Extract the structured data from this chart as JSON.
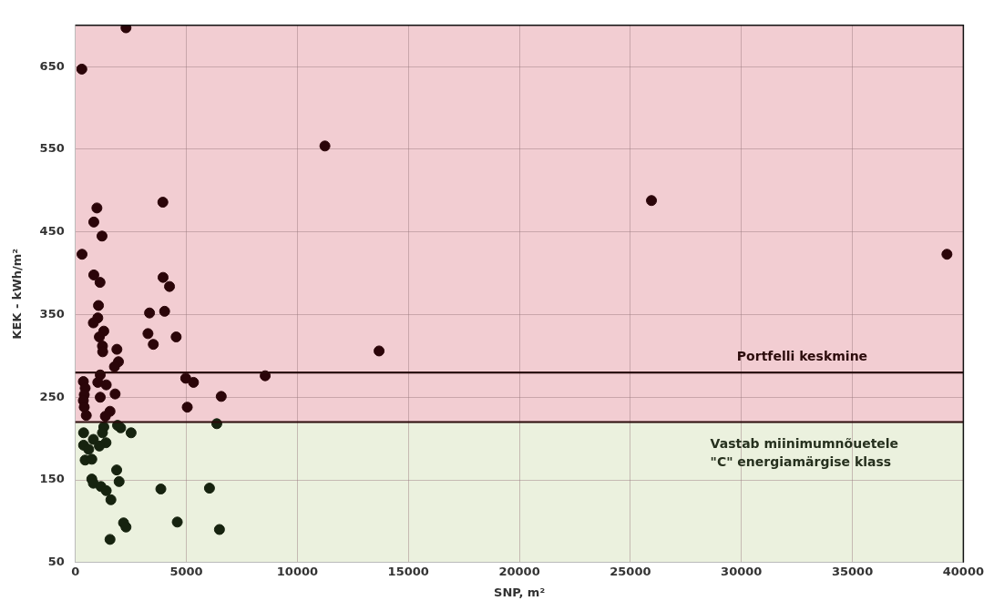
{
  "chart_data": {
    "type": "scatter",
    "xlabel": "SNP, m²",
    "ylabel": "KEK - kWh/m²",
    "xlim": [
      0,
      40000
    ],
    "xticks": [
      0,
      5000,
      10000,
      15000,
      20000,
      25000,
      30000,
      35000,
      40000
    ],
    "ylim": [
      50,
      700
    ],
    "yticks": [
      50,
      150,
      250,
      350,
      450,
      550,
      650
    ],
    "grid": true,
    "marker": "circle",
    "legend": false,
    "series": [
      {
        "color": "#2b0509",
        "x": [
          2280,
          290,
          3940,
          970,
          830,
          1200,
          300,
          830,
          1110,
          3950,
          4240,
          1040,
          3340,
          4020,
          1010,
          810,
          1280,
          1080,
          3270,
          3510,
          4540,
          1220,
          1230,
          1870,
          1940,
          1760,
          1120,
          360,
          1010,
          1390,
          440,
          400,
          1120,
          1790,
          360,
          400,
          1560,
          490,
          1350,
          4970,
          5320,
          6570,
          5040,
          8550,
          11240,
          13680,
          25950,
          39260
        ],
        "values": [
          697,
          647,
          486,
          479,
          462,
          445,
          423,
          398,
          389,
          395,
          384,
          361,
          352,
          354,
          346,
          340,
          330,
          323,
          327,
          314,
          323,
          312,
          305,
          308,
          293,
          287,
          277,
          269,
          268,
          265,
          261,
          253,
          250,
          254,
          246,
          238,
          233,
          228,
          227,
          273,
          268,
          251,
          238,
          276,
          554,
          306,
          488,
          423
        ]
      },
      {
        "color": "#16230f",
        "x": [
          6370,
          2510,
          2040,
          1900,
          1280,
          1220,
          370,
          810,
          1380,
          1080,
          370,
          600,
          440,
          740,
          1860,
          740,
          810,
          1150,
          1970,
          1390,
          1600,
          3850,
          6040,
          2170,
          2280,
          4590,
          6490,
          1560
        ],
        "values": [
          218,
          207,
          213,
          216,
          214,
          207,
          207,
          199,
          195,
          191,
          192,
          187,
          174,
          175,
          162,
          151,
          146,
          142,
          148,
          137,
          126,
          139,
          140,
          98,
          93,
          99,
          90,
          78
        ]
      }
    ],
    "bands": [
      {
        "axis": "y",
        "from": 220,
        "to": 700,
        "color": "#f2cdd2"
      },
      {
        "axis": "y",
        "from": 50,
        "to": 220,
        "color": "#ebf1de",
        "label": "Vastab miinimumnõuetele\n\"C\" energiamärgise klass"
      }
    ],
    "ref_lines": [
      {
        "axis": "y",
        "value": 280,
        "label": "Portfelli keskmine",
        "color": "#2b0b0b"
      },
      {
        "axis": "y",
        "value": 220,
        "color": "#2b0b0b"
      }
    ]
  }
}
